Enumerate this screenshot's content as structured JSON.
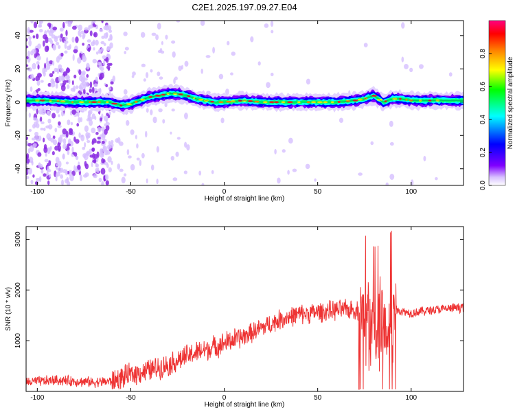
{
  "figure": {
    "title": "C2E1.2025.197.09.27.E04"
  },
  "chart_data": [
    {
      "type": "heatmap",
      "title": "C2E1.2025.197.09.27.E04",
      "xlabel": "Height of straight line (km)",
      "ylabel": "Frequency (Hz)",
      "xlim": [
        -106,
        128
      ],
      "ylim": [
        -50,
        49
      ],
      "xticks": [
        -100,
        -50,
        0,
        50,
        100
      ],
      "yticks": [
        -40,
        -20,
        0,
        20,
        40
      ],
      "colorbar": {
        "label": "Normalized spectral amplitude",
        "range": [
          0,
          1
        ],
        "ticks": [
          "0.0",
          "0.2",
          "0.4",
          "0.6",
          "0.8"
        ],
        "colormap": [
          "#ffffff",
          "#d8c0ff",
          "#8000ff",
          "#0000ff",
          "#00ffff",
          "#00ff00",
          "#ffff00",
          "#ff8000",
          "#ff0000",
          "#ff0080"
        ]
      },
      "ridge": {
        "x": [
          -106,
          -95,
          -80,
          -70,
          -62,
          -55,
          -50,
          -45,
          -40,
          -35,
          -30,
          -25,
          -20,
          -15,
          -10,
          -5,
          0,
          10,
          20,
          30,
          40,
          50,
          60,
          70,
          75,
          80,
          85,
          90,
          95,
          100,
          110,
          128
        ],
        "freq": [
          1,
          1,
          0,
          0,
          0,
          -2,
          -1,
          1,
          3,
          4,
          5,
          5,
          4,
          2,
          1,
          0,
          0,
          1,
          0,
          0,
          0,
          0,
          0,
          1,
          2,
          4,
          0,
          2,
          2,
          1,
          1,
          1
        ]
      },
      "grid": false
    },
    {
      "type": "line",
      "xlabel": "Height of straight line (km)",
      "ylabel": "SNR (10 * v/v)",
      "xlim": [
        -106,
        128
      ],
      "ylim": [
        0,
        3250
      ],
      "xticks": [
        -100,
        -50,
        0,
        50,
        100
      ],
      "yticks": [
        1000,
        2000,
        3000
      ],
      "color": "#ee3333",
      "trend": {
        "x": [
          -106,
          -90,
          -70,
          -60,
          -50,
          -40,
          -30,
          -20,
          -10,
          0,
          10,
          20,
          30,
          40,
          50,
          60,
          70,
          75,
          80,
          85,
          90,
          95,
          100,
          110,
          128
        ],
        "y": [
          180,
          220,
          180,
          200,
          330,
          420,
          520,
          700,
          820,
          950,
          1080,
          1250,
          1420,
          1520,
          1560,
          1600,
          1620,
          1500,
          1250,
          1300,
          1600,
          1580,
          1550,
          1600,
          1660
        ]
      },
      "grid": false
    }
  ]
}
